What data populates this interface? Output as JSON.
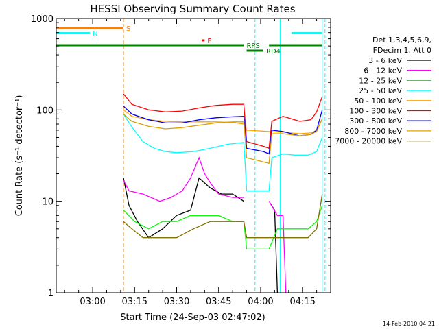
{
  "chart_data": {
    "type": "line",
    "title": "HESSI Observing Summary Count Rates",
    "xlabel": "Start Time (24-Sep-03 02:47:02)",
    "ylabel": "Count Rate (s⁻¹ detector⁻¹)",
    "y_scale": "log",
    "ylim": [
      1,
      1000
    ],
    "y_ticks": [
      {
        "value": 1,
        "label": "1"
      },
      {
        "value": 10,
        "label": "10"
      },
      {
        "value": 100,
        "label": "100"
      },
      {
        "value": 1000,
        "label": "1000"
      }
    ],
    "xlim": [
      "02:47",
      "04:25"
    ],
    "x_ticks": [
      {
        "value": "03:00",
        "label": "03:00"
      },
      {
        "value": "03:15",
        "label": "03:15"
      },
      {
        "value": "03:30",
        "label": "03:30"
      },
      {
        "value": "03:45",
        "label": "03:45"
      },
      {
        "value": "04:00",
        "label": "04:00"
      },
      {
        "value": "04:15",
        "label": "04:15"
      }
    ],
    "legend_position": "right",
    "legend_header": [
      "Det 1,3,4,5,6,9,",
      "FDecim 1, Att 0"
    ],
    "footer": "14-Feb-2010 04:21",
    "series": [
      {
        "name": "3 - 6 keV",
        "color": "#000000",
        "points": [
          [
            "03:11",
            18
          ],
          [
            "03:13",
            9
          ],
          [
            "03:16",
            6
          ],
          [
            "03:20",
            4
          ],
          [
            "03:25",
            5
          ],
          [
            "03:30",
            7
          ],
          [
            "03:35",
            8
          ],
          [
            "03:38",
            18
          ],
          [
            "03:42",
            14
          ],
          [
            "03:46",
            12
          ],
          [
            "03:50",
            12
          ],
          [
            "03:54",
            10
          ],
          [
            "03:55",
            null
          ],
          [
            "04:03",
            10
          ],
          [
            "04:05",
            8
          ],
          [
            "04:06",
            1
          ]
        ]
      },
      {
        "name": "6 - 12 keV",
        "color": "#ff00ff",
        "points": [
          [
            "03:11",
            17
          ],
          [
            "03:13",
            13
          ],
          [
            "03:18",
            12
          ],
          [
            "03:24",
            10
          ],
          [
            "03:28",
            11
          ],
          [
            "03:32",
            13
          ],
          [
            "03:35",
            18
          ],
          [
            "03:38",
            30
          ],
          [
            "03:40",
            20
          ],
          [
            "03:42",
            16
          ],
          [
            "03:45",
            12
          ],
          [
            "03:50",
            11
          ],
          [
            "03:54",
            11
          ],
          [
            "03:55",
            null
          ],
          [
            "04:03",
            10
          ],
          [
            "04:06",
            7
          ],
          [
            "04:08",
            7
          ],
          [
            "04:09",
            1
          ]
        ]
      },
      {
        "name": "12 - 25 keV",
        "color": "#00ff00",
        "points": [
          [
            "03:11",
            8
          ],
          [
            "03:15",
            6
          ],
          [
            "03:20",
            5
          ],
          [
            "03:25",
            6
          ],
          [
            "03:30",
            6
          ],
          [
            "03:35",
            7
          ],
          [
            "03:40",
            7
          ],
          [
            "03:45",
            7
          ],
          [
            "03:50",
            6
          ],
          [
            "03:54",
            6
          ],
          [
            "03:55",
            3
          ],
          [
            "04:03",
            3
          ],
          [
            "04:06",
            5
          ],
          [
            "04:12",
            5
          ],
          [
            "04:17",
            5
          ],
          [
            "04:20",
            6
          ],
          [
            "04:22",
            9
          ]
        ]
      },
      {
        "name": "25 - 50 keV",
        "color": "#00ffff",
        "points": [
          [
            "03:11",
            90
          ],
          [
            "03:14",
            65
          ],
          [
            "03:18",
            45
          ],
          [
            "03:22",
            38
          ],
          [
            "03:26",
            35
          ],
          [
            "03:30",
            34
          ],
          [
            "03:36",
            35
          ],
          [
            "03:42",
            38
          ],
          [
            "03:48",
            42
          ],
          [
            "03:54",
            44
          ],
          [
            "03:55",
            13
          ],
          [
            "04:03",
            13
          ],
          [
            "04:04",
            30
          ],
          [
            "04:08",
            33
          ],
          [
            "04:12",
            32
          ],
          [
            "04:17",
            32
          ],
          [
            "04:20",
            35
          ],
          [
            "04:22",
            50
          ]
        ]
      },
      {
        "name": "50 - 100 keV",
        "color": "#ffa500",
        "points": [
          [
            "03:11",
            100
          ],
          [
            "03:14",
            85
          ],
          [
            "03:20",
            78
          ],
          [
            "03:26",
            75
          ],
          [
            "03:32",
            74
          ],
          [
            "03:38",
            74
          ],
          [
            "03:44",
            74
          ],
          [
            "03:50",
            73
          ],
          [
            "03:54",
            70
          ],
          [
            "03:55",
            60
          ],
          [
            "04:03",
            58
          ],
          [
            "04:08",
            57
          ],
          [
            "04:14",
            55
          ],
          [
            "04:18",
            56
          ],
          [
            "04:20",
            60
          ],
          [
            "04:22",
            80
          ]
        ]
      },
      {
        "name": "100 - 300 keV",
        "color": "#ff0000",
        "points": [
          [
            "03:11",
            150
          ],
          [
            "03:14",
            115
          ],
          [
            "03:20",
            100
          ],
          [
            "03:26",
            95
          ],
          [
            "03:32",
            97
          ],
          [
            "03:38",
            105
          ],
          [
            "03:44",
            112
          ],
          [
            "03:50",
            115
          ],
          [
            "03:54",
            115
          ],
          [
            "03:55",
            45
          ],
          [
            "04:01",
            40
          ],
          [
            "04:03",
            38
          ],
          [
            "04:04",
            75
          ],
          [
            "04:08",
            85
          ],
          [
            "04:14",
            75
          ],
          [
            "04:18",
            78
          ],
          [
            "04:20",
            95
          ],
          [
            "04:22",
            140
          ]
        ]
      },
      {
        "name": "300 - 800 keV",
        "color": "#0000ff",
        "points": [
          [
            "03:11",
            110
          ],
          [
            "03:14",
            90
          ],
          [
            "03:20",
            78
          ],
          [
            "03:26",
            72
          ],
          [
            "03:32",
            72
          ],
          [
            "03:38",
            78
          ],
          [
            "03:44",
            82
          ],
          [
            "03:50",
            84
          ],
          [
            "03:54",
            85
          ],
          [
            "03:55",
            38
          ],
          [
            "04:01",
            35
          ],
          [
            "04:03",
            33
          ],
          [
            "04:04",
            60
          ],
          [
            "04:08",
            58
          ],
          [
            "04:14",
            52
          ],
          [
            "04:18",
            54
          ],
          [
            "04:20",
            60
          ],
          [
            "04:22",
            100
          ]
        ]
      },
      {
        "name": "800 - 7000 keV",
        "color": "#dda000",
        "points": [
          [
            "03:11",
            90
          ],
          [
            "03:14",
            75
          ],
          [
            "03:20",
            66
          ],
          [
            "03:26",
            62
          ],
          [
            "03:32",
            64
          ],
          [
            "03:38",
            68
          ],
          [
            "03:44",
            72
          ],
          [
            "03:50",
            74
          ],
          [
            "03:54",
            74
          ],
          [
            "03:55",
            30
          ],
          [
            "04:01",
            27
          ],
          [
            "04:03",
            26
          ],
          [
            "04:04",
            55
          ],
          [
            "04:08",
            55
          ],
          [
            "04:14",
            52
          ],
          [
            "04:18",
            54
          ],
          [
            "04:20",
            58
          ],
          [
            "04:22",
            80
          ]
        ]
      },
      {
        "name": "7000 - 20000 keV",
        "color": "#807000",
        "points": [
          [
            "03:11",
            6
          ],
          [
            "03:14",
            5
          ],
          [
            "03:18",
            4
          ],
          [
            "03:22",
            4
          ],
          [
            "03:26",
            4
          ],
          [
            "03:30",
            4
          ],
          [
            "03:36",
            5
          ],
          [
            "03:42",
            6
          ],
          [
            "03:48",
            6
          ],
          [
            "03:54",
            6
          ],
          [
            "03:55",
            4
          ],
          [
            "04:03",
            4
          ],
          [
            "04:06",
            4
          ],
          [
            "04:12",
            4
          ],
          [
            "04:17",
            4
          ],
          [
            "04:20",
            5
          ],
          [
            "04:22",
            12
          ]
        ]
      }
    ],
    "flag_bars": [
      {
        "label": "S",
        "color": "#ff8000",
        "segments": [
          [
            "02:47",
            "03:11"
          ]
        ]
      },
      {
        "label": "N",
        "color": "#00ffff",
        "segments": [
          [
            "02:47",
            "02:59"
          ],
          [
            "04:11",
            "04:22"
          ]
        ]
      },
      {
        "label": "F",
        "color": "#ff0000",
        "segments": [
          [
            "03:39",
            "03:40"
          ]
        ]
      },
      {
        "label": "RPS",
        "color": "#008000",
        "segments": [
          [
            "02:47",
            "03:54"
          ],
          [
            "04:03",
            "04:22"
          ]
        ]
      },
      {
        "label": "RD4",
        "color": "#008000",
        "segments": [
          [
            "03:55",
            "04:01"
          ]
        ]
      }
    ],
    "vertical_markers": [
      {
        "time": "02:47",
        "color": "#00ffff",
        "style": "solid"
      },
      {
        "time": "03:58",
        "color": "#00ffff",
        "style": "dashed"
      },
      {
        "time": "03:11",
        "color": "#ff8000",
        "style": "dashed"
      },
      {
        "time": "04:07",
        "color": "#00ffff",
        "style": "solid"
      },
      {
        "time": "04:22",
        "color": "#00ffff",
        "style": "solid"
      },
      {
        "time": "04:23",
        "color": "#00ffff",
        "style": "dashed"
      }
    ]
  }
}
